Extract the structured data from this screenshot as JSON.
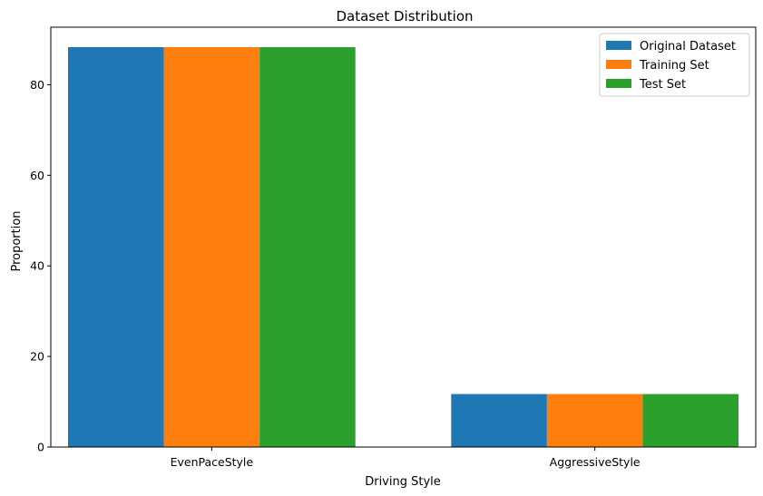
{
  "chart_data": {
    "type": "bar",
    "title": "Dataset Distribution",
    "xlabel": "Driving Style",
    "ylabel": "Proportion",
    "categories": [
      "EvenPaceStyle",
      "AggressiveStyle"
    ],
    "series": [
      {
        "name": "Original Dataset",
        "values": [
          88.3,
          11.7
        ],
        "color": "#1f77b4"
      },
      {
        "name": "Training Set",
        "values": [
          88.3,
          11.7
        ],
        "color": "#ff7f0e"
      },
      {
        "name": "Test Set",
        "values": [
          88.3,
          11.7
        ],
        "color": "#2ca02c"
      }
    ],
    "ylim": [
      0,
      92.7
    ],
    "yticks": [
      0,
      20,
      40,
      60,
      80
    ],
    "grid": false,
    "legend_position": "top-right"
  }
}
